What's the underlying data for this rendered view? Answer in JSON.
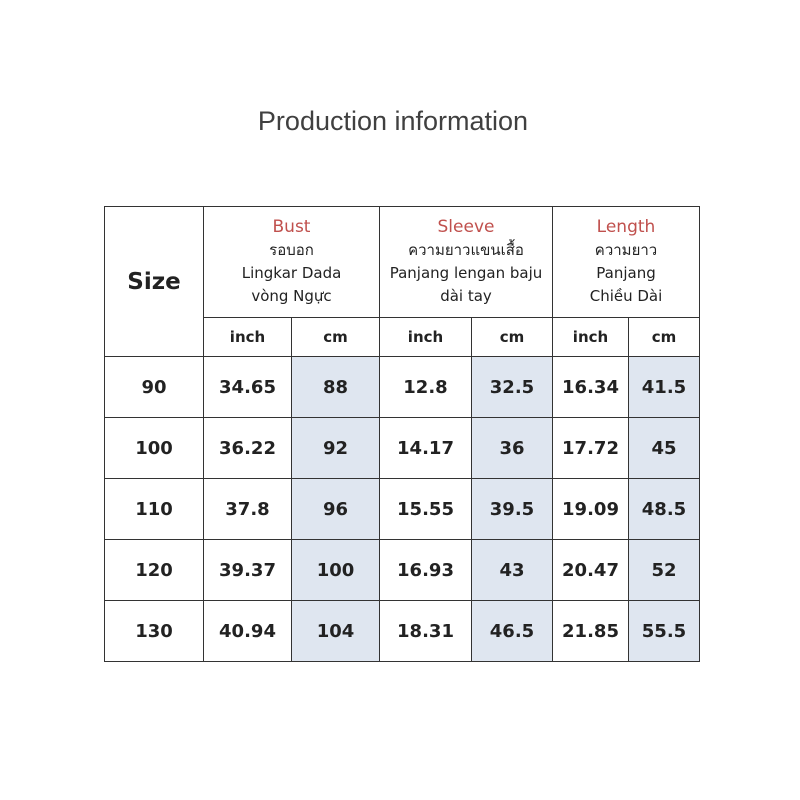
{
  "header": {
    "title": "Production information"
  },
  "table": {
    "size_label": "Size",
    "groups": [
      {
        "name": "Bust",
        "lines": [
          "รอบอก",
          "Lingkar Dada",
          "vòng Ngực"
        ]
      },
      {
        "name": "Sleeve",
        "lines": [
          "ความยาวแขนเสื้อ",
          "Panjang lengan baju",
          "dài tay"
        ]
      },
      {
        "name": "Length",
        "lines": [
          "ความยาว",
          "Panjang",
          "Chiều Dài"
        ]
      }
    ],
    "units": [
      "inch",
      "cm",
      "inch",
      "cm",
      "inch",
      "cm"
    ],
    "rows": [
      [
        "90",
        "34.65",
        "88",
        "12.8",
        "32.5",
        "16.34",
        "41.5"
      ],
      [
        "100",
        "36.22",
        "92",
        "14.17",
        "36",
        "17.72",
        "45"
      ],
      [
        "110",
        "37.8",
        "96",
        "15.55",
        "39.5",
        "19.09",
        "48.5"
      ],
      [
        "120",
        "39.37",
        "100",
        "16.93",
        "43",
        "20.47",
        "52"
      ],
      [
        "130",
        "40.94",
        "104",
        "18.31",
        "46.5",
        "21.85",
        "55.5"
      ]
    ]
  }
}
